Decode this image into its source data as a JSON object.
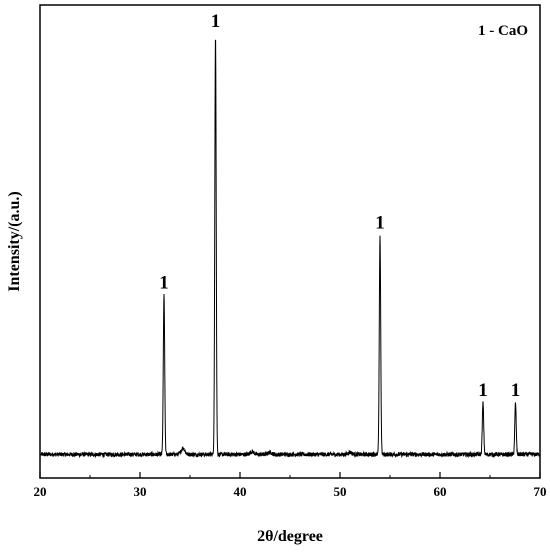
{
  "chart_data": {
    "type": "line",
    "title": "",
    "xlabel": "2θ/degree",
    "ylabel": "Intensity/(a.u.)",
    "xlim": [
      20,
      70
    ],
    "xticks": [
      20,
      30,
      40,
      50,
      60,
      70
    ],
    "y_tick_labels_shown": false,
    "grid": false,
    "legend": {
      "text": "1 - CaO",
      "placement": "top-right"
    },
    "baseline": 0.02,
    "series": [
      {
        "color": "#000000",
        "peaks": [
          {
            "x": 32.4,
            "y": 0.39,
            "label": "1"
          },
          {
            "x": 37.55,
            "y": 1.0,
            "label": "1"
          },
          {
            "x": 54.0,
            "y": 0.53,
            "label": "1"
          },
          {
            "x": 64.3,
            "y": 0.14,
            "label": "1"
          },
          {
            "x": 67.55,
            "y": 0.14,
            "label": "1"
          }
        ],
        "minor_peaks": [
          {
            "x": 34.3,
            "y": 0.035
          },
          {
            "x": 41.2,
            "y": 0.027
          },
          {
            "x": 43.0,
            "y": 0.025
          },
          {
            "x": 51.0,
            "y": 0.025
          }
        ]
      }
    ]
  }
}
